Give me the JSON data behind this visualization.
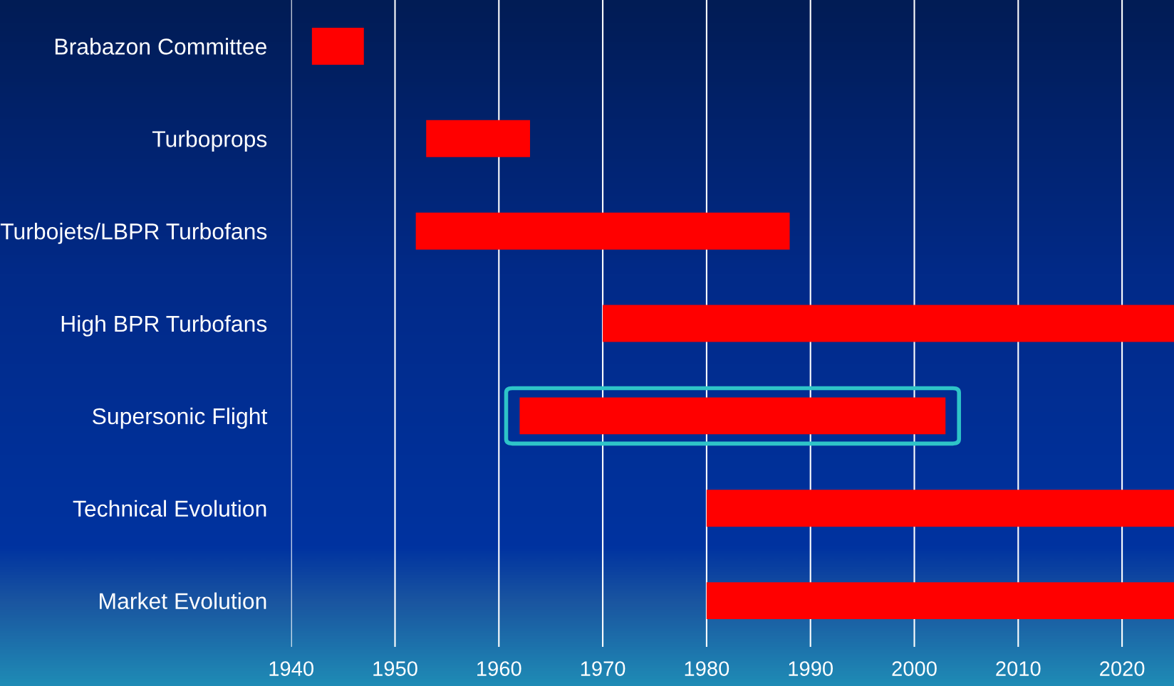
{
  "chart_data": {
    "type": "bar",
    "orientation": "horizontal",
    "categories": [
      "Brabazon Committee",
      "Turboprops",
      "Turbojets/LBPR Turbofans",
      "High BPR Turbofans",
      "Supersonic Flight",
      "Technical Evolution",
      "Market Evolution"
    ],
    "base": [
      1942,
      1953,
      1952,
      1970,
      1962,
      1980,
      1980
    ],
    "values": [
      5,
      10,
      36,
      55,
      41,
      45,
      45
    ],
    "color": "#ff0000",
    "xlim": [
      1940,
      2025
    ],
    "xticks": [
      1940,
      1950,
      1960,
      1970,
      1980,
      1990,
      2000,
      2010,
      2020
    ],
    "grid": "x"
  }
}
